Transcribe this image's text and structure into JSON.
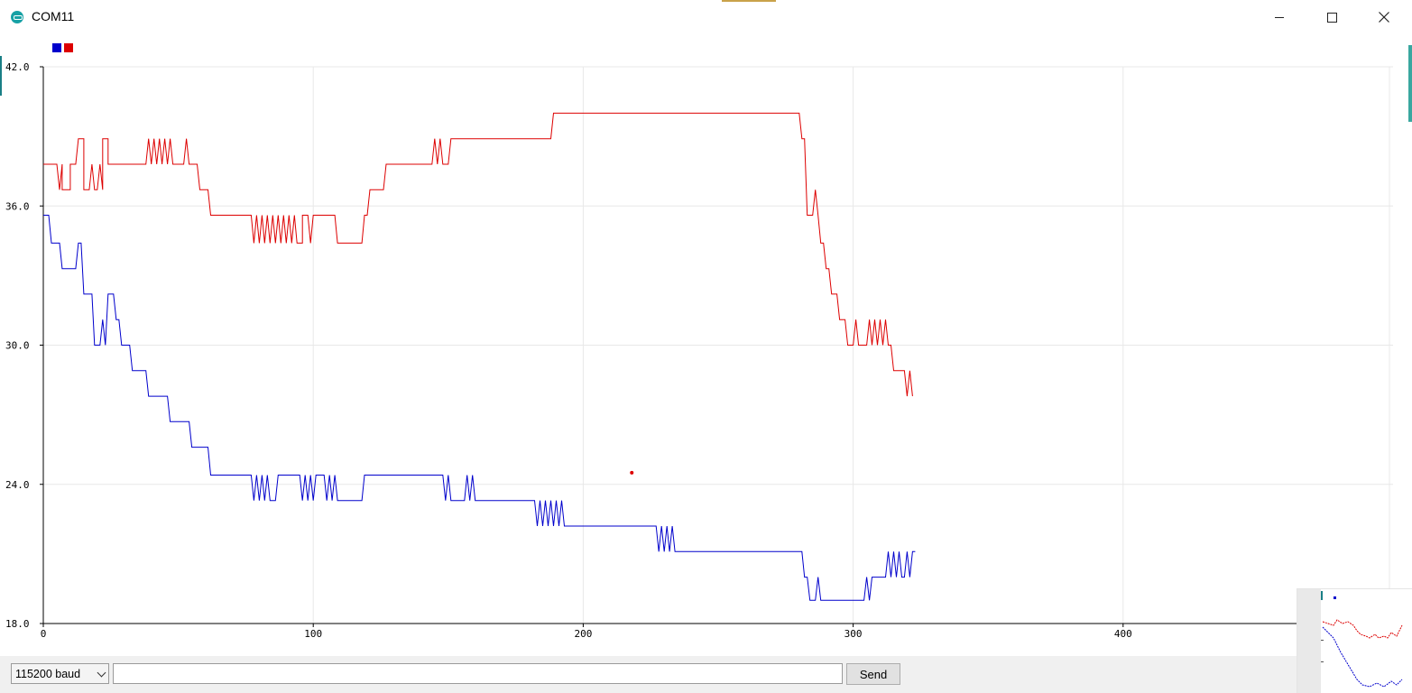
{
  "window": {
    "title": "COM11",
    "app_icon": "arduino-icon",
    "controls": [
      "minimize-icon",
      "maximize-icon",
      "close-icon"
    ]
  },
  "legend": {
    "colors": [
      "#0000cc",
      "#dd0000"
    ]
  },
  "chart_data": {
    "type": "line",
    "xlim": [
      0,
      500
    ],
    "ylim": [
      18,
      42
    ],
    "x_ticks": [
      "0",
      "100",
      "200",
      "300",
      "400"
    ],
    "y_ticks": [
      "42.0",
      "36.0",
      "30.0",
      "24.0",
      "18.0"
    ],
    "grid": true,
    "legend_placement": "top-left",
    "series": [
      {
        "color": "#dd0000",
        "points": [
          [
            0,
            37.8
          ],
          [
            5,
            37.8
          ],
          [
            6,
            36.7
          ],
          [
            7,
            37.8
          ],
          [
            7,
            36.7
          ],
          [
            10,
            36.7
          ],
          [
            10,
            37.8
          ],
          [
            12,
            37.8
          ],
          [
            13,
            38.9
          ],
          [
            15,
            38.9
          ],
          [
            15,
            36.7
          ],
          [
            17,
            36.7
          ],
          [
            18,
            37.8
          ],
          [
            19,
            36.7
          ],
          [
            20,
            36.7
          ],
          [
            21,
            37.8
          ],
          [
            22,
            36.7
          ],
          [
            22,
            38.9
          ],
          [
            24,
            38.9
          ],
          [
            24,
            37.8
          ],
          [
            38,
            37.8
          ],
          [
            39,
            38.9
          ],
          [
            40,
            37.8
          ],
          [
            41,
            38.9
          ],
          [
            42,
            37.8
          ],
          [
            43,
            38.9
          ],
          [
            44,
            37.8
          ],
          [
            45,
            38.9
          ],
          [
            46,
            37.8
          ],
          [
            47,
            38.9
          ],
          [
            48,
            37.8
          ],
          [
            52,
            37.8
          ],
          [
            53,
            38.9
          ],
          [
            54,
            37.8
          ],
          [
            57,
            37.8
          ],
          [
            58,
            36.7
          ],
          [
            61,
            36.7
          ],
          [
            62,
            35.6
          ],
          [
            77,
            35.6
          ],
          [
            78,
            34.4
          ],
          [
            79,
            35.6
          ],
          [
            80,
            34.4
          ],
          [
            81,
            35.6
          ],
          [
            82,
            34.4
          ],
          [
            83,
            35.6
          ],
          [
            84,
            34.4
          ],
          [
            85,
            35.6
          ],
          [
            86,
            34.4
          ],
          [
            87,
            35.6
          ],
          [
            88,
            34.4
          ],
          [
            89,
            35.6
          ],
          [
            90,
            34.4
          ],
          [
            91,
            35.6
          ],
          [
            92,
            34.4
          ],
          [
            93,
            35.6
          ],
          [
            94,
            34.4
          ],
          [
            96,
            34.4
          ],
          [
            96,
            35.6
          ],
          [
            98,
            35.6
          ],
          [
            99,
            34.4
          ],
          [
            100,
            35.6
          ],
          [
            108,
            35.6
          ],
          [
            109,
            34.4
          ],
          [
            118,
            34.4
          ],
          [
            119,
            35.6
          ],
          [
            120,
            35.6
          ],
          [
            121,
            36.7
          ],
          [
            126,
            36.7
          ],
          [
            127,
            37.8
          ],
          [
            144,
            37.8
          ],
          [
            145,
            38.9
          ],
          [
            146,
            37.8
          ],
          [
            147,
            38.9
          ],
          [
            148,
            37.8
          ],
          [
            150,
            37.8
          ],
          [
            151,
            38.9
          ],
          [
            153,
            38.9
          ],
          [
            188,
            38.9
          ],
          [
            189,
            40.0
          ],
          [
            280,
            40.0
          ],
          [
            281,
            38.9
          ],
          [
            282,
            38.9
          ],
          [
            283,
            35.6
          ],
          [
            285,
            35.6
          ],
          [
            286,
            36.7
          ],
          [
            287,
            35.6
          ],
          [
            288,
            34.4
          ],
          [
            289,
            34.4
          ],
          [
            290,
            33.3
          ],
          [
            291,
            33.3
          ],
          [
            292,
            32.2
          ],
          [
            294,
            32.2
          ],
          [
            295,
            31.1
          ],
          [
            297,
            31.1
          ],
          [
            298,
            30.0
          ],
          [
            300,
            30.0
          ],
          [
            301,
            31.1
          ],
          [
            302,
            30.0
          ],
          [
            305,
            30.0
          ],
          [
            306,
            31.1
          ],
          [
            307,
            30.0
          ],
          [
            308,
            31.1
          ],
          [
            309,
            30.0
          ],
          [
            310,
            31.1
          ],
          [
            311,
            30.0
          ],
          [
            312,
            31.1
          ],
          [
            313,
            30.0
          ],
          [
            314,
            30.0
          ],
          [
            315,
            28.9
          ],
          [
            319,
            28.9
          ],
          [
            320,
            27.8
          ],
          [
            321,
            28.9
          ],
          [
            322,
            27.8
          ]
        ]
      },
      {
        "color": "#0000cc",
        "points": [
          [
            0,
            35.6
          ],
          [
            2,
            35.6
          ],
          [
            3,
            34.4
          ],
          [
            6,
            34.4
          ],
          [
            7,
            33.3
          ],
          [
            12,
            33.3
          ],
          [
            13,
            34.4
          ],
          [
            14,
            34.4
          ],
          [
            15,
            32.2
          ],
          [
            18,
            32.2
          ],
          [
            19,
            30.0
          ],
          [
            21,
            30.0
          ],
          [
            22,
            31.1
          ],
          [
            23,
            30.0
          ],
          [
            24,
            32.2
          ],
          [
            26,
            32.2
          ],
          [
            27,
            31.1
          ],
          [
            28,
            31.1
          ],
          [
            29,
            30.0
          ],
          [
            32,
            30.0
          ],
          [
            33,
            28.9
          ],
          [
            38,
            28.9
          ],
          [
            39,
            27.8
          ],
          [
            46,
            27.8
          ],
          [
            47,
            26.7
          ],
          [
            54,
            26.7
          ],
          [
            55,
            25.6
          ],
          [
            61,
            25.6
          ],
          [
            62,
            24.4
          ],
          [
            77,
            24.4
          ],
          [
            78,
            23.3
          ],
          [
            79,
            24.4
          ],
          [
            80,
            23.3
          ],
          [
            81,
            24.4
          ],
          [
            82,
            23.3
          ],
          [
            83,
            24.4
          ],
          [
            84,
            23.3
          ],
          [
            86,
            23.3
          ],
          [
            87,
            24.4
          ],
          [
            95,
            24.4
          ],
          [
            96,
            23.3
          ],
          [
            97,
            24.4
          ],
          [
            98,
            23.3
          ],
          [
            99,
            24.4
          ],
          [
            100,
            23.3
          ],
          [
            101,
            24.4
          ],
          [
            104,
            24.4
          ],
          [
            105,
            23.3
          ],
          [
            106,
            24.4
          ],
          [
            107,
            23.3
          ],
          [
            108,
            24.4
          ],
          [
            109,
            23.3
          ],
          [
            118,
            23.3
          ],
          [
            119,
            24.4
          ],
          [
            148,
            24.4
          ],
          [
            149,
            23.3
          ],
          [
            150,
            24.4
          ],
          [
            151,
            23.3
          ],
          [
            156,
            23.3
          ],
          [
            157,
            24.4
          ],
          [
            158,
            23.3
          ],
          [
            159,
            24.4
          ],
          [
            160,
            23.3
          ],
          [
            182,
            23.3
          ],
          [
            183,
            22.2
          ],
          [
            184,
            23.3
          ],
          [
            185,
            22.2
          ],
          [
            186,
            23.3
          ],
          [
            187,
            22.2
          ],
          [
            188,
            23.3
          ],
          [
            189,
            22.2
          ],
          [
            190,
            23.3
          ],
          [
            191,
            22.2
          ],
          [
            192,
            23.3
          ],
          [
            193,
            22.2
          ],
          [
            227,
            22.2
          ],
          [
            228,
            21.1
          ],
          [
            229,
            22.2
          ],
          [
            230,
            21.1
          ],
          [
            231,
            22.2
          ],
          [
            232,
            21.1
          ],
          [
            233,
            22.2
          ],
          [
            234,
            21.1
          ],
          [
            281,
            21.1
          ],
          [
            282,
            20.0
          ],
          [
            283,
            20.0
          ],
          [
            284,
            19.0
          ],
          [
            286,
            19.0
          ],
          [
            287,
            20.0
          ],
          [
            288,
            19.0
          ],
          [
            304,
            19.0
          ],
          [
            305,
            20.0
          ],
          [
            306,
            19.0
          ],
          [
            307,
            20.0
          ],
          [
            312,
            20.0
          ],
          [
            313,
            21.1
          ],
          [
            314,
            20.0
          ],
          [
            315,
            21.1
          ],
          [
            316,
            20.0
          ],
          [
            317,
            21.1
          ],
          [
            318,
            20.0
          ],
          [
            319,
            20.0
          ],
          [
            320,
            21.1
          ],
          [
            321,
            20.0
          ],
          [
            322,
            21.1
          ],
          [
            323,
            21.1
          ]
        ]
      },
      {
        "color": "#dd0000",
        "style": "point",
        "points": [
          [
            218,
            24.5
          ]
        ]
      }
    ]
  },
  "controls": {
    "baud_value": "115200 baud",
    "send_input_value": "",
    "send_label": "Send"
  }
}
